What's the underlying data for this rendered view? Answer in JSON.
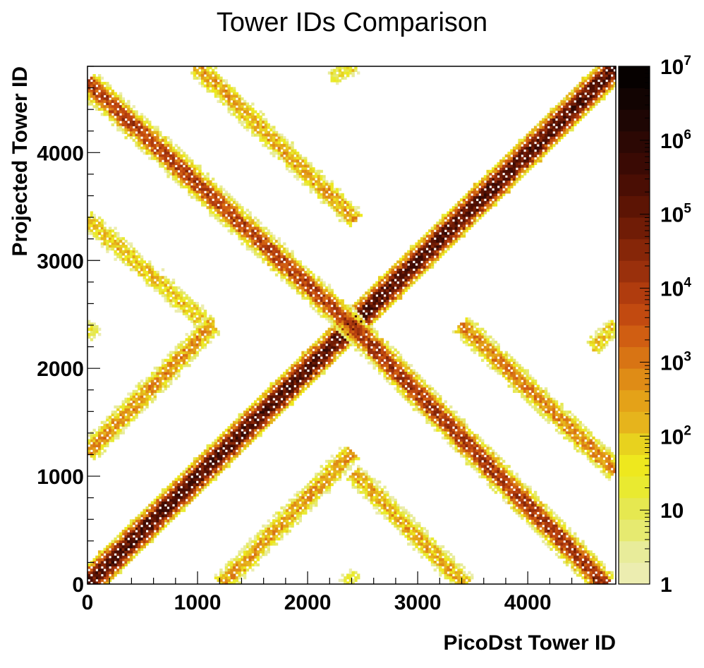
{
  "chart_data": {
    "type": "heatmap",
    "title": "Tower IDs Comparison",
    "xlabel": "PicoDst Tower ID",
    "ylabel": "Projected Tower ID",
    "xlim": [
      0,
      4800
    ],
    "ylim": [
      0,
      4800
    ],
    "x_ticks": [
      "0",
      "1000",
      "2000",
      "3000",
      "4000"
    ],
    "x_tick_values": [
      0,
      1000,
      2000,
      3000,
      4000
    ],
    "y_ticks": [
      "0",
      "1000",
      "2000",
      "3000",
      "4000"
    ],
    "y_tick_values": [
      0,
      1000,
      2000,
      3000,
      4000
    ],
    "z_scale": "log",
    "zlim": [
      1,
      10000000
    ],
    "colorbar_labels": [
      {
        "base": "1",
        "exp": "",
        "value": 1
      },
      {
        "base": "10",
        "exp": "",
        "value": 10
      },
      {
        "base": "10",
        "exp": "2",
        "value": 100
      },
      {
        "base": "10",
        "exp": "3",
        "value": 1000
      },
      {
        "base": "10",
        "exp": "4",
        "value": 10000
      },
      {
        "base": "10",
        "exp": "5",
        "value": 100000
      },
      {
        "base": "10",
        "exp": "6",
        "value": 1000000
      },
      {
        "base": "10",
        "exp": "7",
        "value": 10000000
      }
    ],
    "colorbar_colors": [
      "#ecedb0",
      "#e8ec9a",
      "#e6ea70",
      "#e6e850",
      "#e9ea30",
      "#eee81e",
      "#e8d21e",
      "#e6b41c",
      "#e4a218",
      "#df8c16",
      "#d87414",
      "#d05e12",
      "#c24a10",
      "#b03c0e",
      "#9a300c",
      "#862608",
      "#701c06",
      "#5c1404",
      "#4a0e04",
      "#3a0a04",
      "#2c0804",
      "#1e0604",
      "#120402",
      "#060100"
    ],
    "features": [
      {
        "name": "main-diagonal",
        "x": [
          0,
          4800
        ],
        "y": [
          0,
          4800
        ],
        "intensity": 5.2
      },
      {
        "name": "anti-diagonal-lower",
        "x": [
          2400,
          4700
        ],
        "y": [
          2400,
          0
        ],
        "intensity": 4.0
      },
      {
        "name": "anti-diagonal-upper",
        "x": [
          0,
          2400
        ],
        "y": [
          4650,
          2400
        ],
        "intensity": 3.8
      },
      {
        "name": "band-right-lower",
        "x": [
          3400,
          4800
        ],
        "y": [
          2400,
          1050
        ],
        "intensity": 2.8
      },
      {
        "name": "band-right-low",
        "x": [
          2420,
          3430
        ],
        "y": [
          1030,
          0
        ],
        "intensity": 2.3
      },
      {
        "name": "band-left-upper",
        "x": [
          1000,
          2430
        ],
        "y": [
          4800,
          3380
        ],
        "intensity": 2.4
      },
      {
        "name": "band-left-mid",
        "x": [
          0,
          1100
        ],
        "y": [
          3380,
          2400
        ],
        "intensity": 2.0
      },
      {
        "name": "band-lower-left",
        "x": [
          0,
          1130
        ],
        "y": [
          1220,
          2400
        ],
        "intensity": 2.6
      },
      {
        "name": "band-bottom-left",
        "x": [
          1220,
          2400
        ],
        "y": [
          0,
          1220
        ],
        "intensity": 2.5
      },
      {
        "name": "corner-top-center",
        "x": [
          2220,
          2420
        ],
        "y": [
          4700,
          4800
        ],
        "intensity": 1.5
      },
      {
        "name": "corner-right-mid",
        "x": [
          4590,
          4800
        ],
        "y": [
          2200,
          2400
        ],
        "intensity": 1.8
      },
      {
        "name": "corner-left-mid",
        "x": [
          0,
          60
        ],
        "y": [
          2300,
          2400
        ],
        "intensity": 1.2
      },
      {
        "name": "corner-bottom-center",
        "x": [
          2350,
          2430
        ],
        "y": [
          0,
          100
        ],
        "intensity": 1.2
      }
    ]
  }
}
